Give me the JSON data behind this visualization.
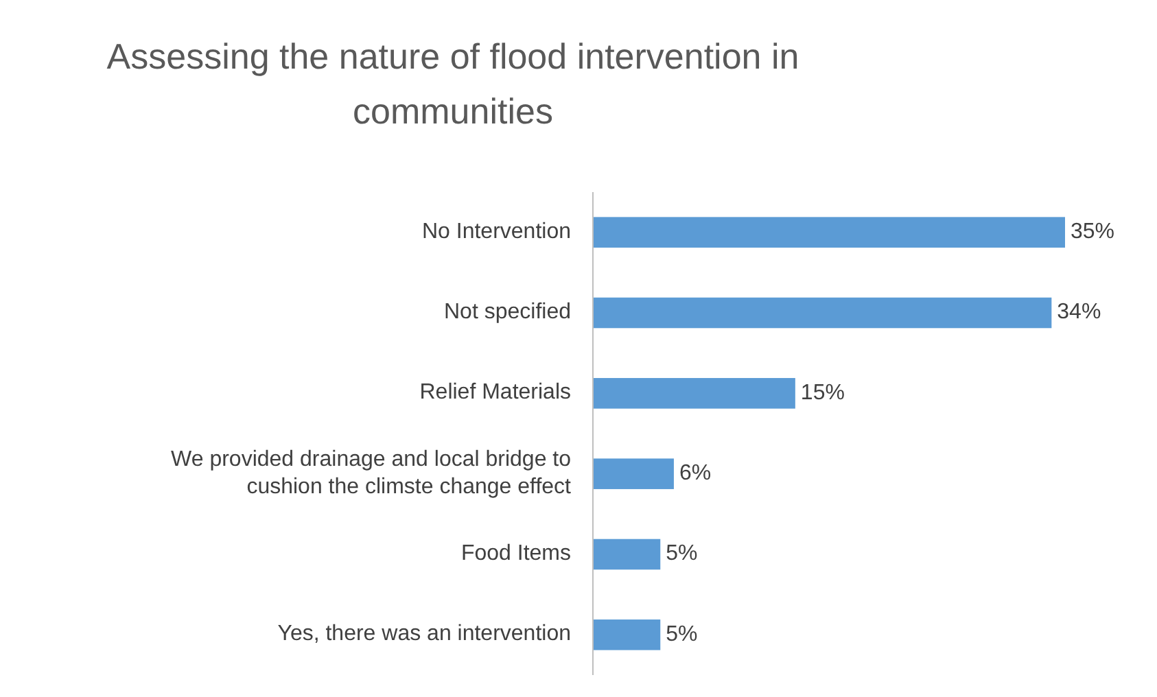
{
  "chart_data": {
    "type": "bar",
    "orientation": "horizontal",
    "title": "Assessing the nature of flood intervention in communities",
    "categories": [
      "No Intervention",
      "Not specified",
      "Relief Materials",
      "We provided drainage and local bridge to cushion the climste change effect",
      "Food Items",
      "Yes, there was an intervention"
    ],
    "values": [
      35,
      34,
      15,
      6,
      5,
      5
    ],
    "value_labels": [
      "35%",
      "34%",
      "15%",
      "6%",
      "5%",
      "5%"
    ],
    "color": "#5b9bd5"
  }
}
